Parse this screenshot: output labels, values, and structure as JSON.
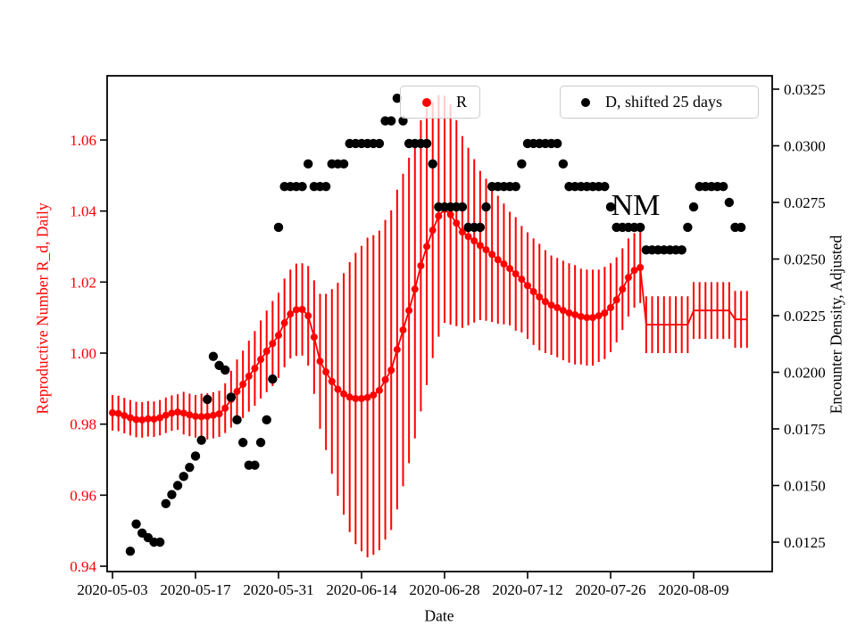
{
  "figure": {
    "annotation": "NM",
    "xlabel": "Date",
    "ylabel_left": "Reproductive Number R_d, Daily",
    "ylabel_right": "Encounter Density, Adjusted",
    "legend_r": "R",
    "legend_d": "D, shifted 25 days",
    "colors": {
      "r_series": "#ff0000",
      "d_series": "#000000",
      "legend_border": "#cccccc",
      "spine": "#000000"
    }
  },
  "chart_data": {
    "type": "line",
    "title": "",
    "xlabel": "Date",
    "grid": false,
    "legend_position": "upper center",
    "annotations": [
      {
        "text": "NM",
        "date": "2020-07-30",
        "y_left": 1.041
      }
    ],
    "x_ticks": [
      "2020-05-03",
      "2020-05-17",
      "2020-05-31",
      "2020-06-14",
      "2020-06-28",
      "2020-07-12",
      "2020-07-26",
      "2020-08-09"
    ],
    "axes": {
      "left": {
        "label": "Reproductive Number R_d, Daily",
        "color": "#ff0000",
        "ticks": [
          "0.94",
          "0.96",
          "0.98",
          "1.00",
          "1.02",
          "1.04",
          "1.06"
        ],
        "ylim": [
          0.9385,
          1.0781
        ]
      },
      "right": {
        "label": "Encounter Density, Adjusted",
        "color": "#000000",
        "ticks": [
          "0.0125",
          "0.0150",
          "0.0175",
          "0.0200",
          "0.0225",
          "0.0250",
          "0.0275",
          "0.0300",
          "0.0325"
        ],
        "ylim": [
          0.0112,
          0.0331
        ]
      }
    },
    "series": [
      {
        "name": "R",
        "axis": "left",
        "style": "errorbar-line",
        "color": "#ff0000",
        "points_format": [
          "date",
          "value",
          "err",
          "marker(0=line only)"
        ],
        "points": [
          [
            "2020-05-03",
            0.9832,
            0.005
          ],
          [
            "2020-05-04",
            0.983,
            0.005
          ],
          [
            "2020-05-05",
            0.9824,
            0.005
          ],
          [
            "2020-05-06",
            0.9818,
            0.005
          ],
          [
            "2020-05-07",
            0.9813,
            0.005
          ],
          [
            "2020-05-08",
            0.9812,
            0.005
          ],
          [
            "2020-05-09",
            0.9815,
            0.005
          ],
          [
            "2020-05-10",
            0.9814,
            0.005
          ],
          [
            "2020-05-11",
            0.9818,
            0.005
          ],
          [
            "2020-05-12",
            0.9825,
            0.005
          ],
          [
            "2020-05-13",
            0.9831,
            0.005
          ],
          [
            "2020-05-14",
            0.9834,
            0.005
          ],
          [
            "2020-05-15",
            0.9831,
            0.006
          ],
          [
            "2020-05-16",
            0.9826,
            0.006
          ],
          [
            "2020-05-17",
            0.9822,
            0.006
          ],
          [
            "2020-05-18",
            0.9821,
            0.0065
          ],
          [
            "2020-05-19",
            0.9822,
            0.0065
          ],
          [
            "2020-05-20",
            0.9825,
            0.0065
          ],
          [
            "2020-05-21",
            0.9829,
            0.0065
          ],
          [
            "2020-05-22",
            0.9845,
            0.007
          ],
          [
            "2020-05-23",
            0.987,
            0.008
          ],
          [
            "2020-05-24",
            0.9892,
            0.009
          ],
          [
            "2020-05-25",
            0.9912,
            0.0095
          ],
          [
            "2020-05-26",
            0.9935,
            0.01
          ],
          [
            "2020-05-27",
            0.9957,
            0.0105
          ],
          [
            "2020-05-28",
            0.9982,
            0.011
          ],
          [
            "2020-05-29",
            1.0005,
            0.0115
          ],
          [
            "2020-05-30",
            1.0027,
            0.012
          ],
          [
            "2020-05-31",
            1.005,
            0.012
          ],
          [
            "2020-06-01",
            1.0085,
            0.0125
          ],
          [
            "2020-06-02",
            1.011,
            0.0125
          ],
          [
            "2020-06-03",
            1.0122,
            0.013
          ],
          [
            "2020-06-04",
            1.0123,
            0.013
          ],
          [
            "2020-06-05",
            1.0105,
            0.014
          ],
          [
            "2020-06-06",
            1.0045,
            0.016
          ],
          [
            "2020-06-07",
            0.9977,
            0.019
          ],
          [
            "2020-06-08",
            0.9947,
            0.022
          ],
          [
            "2020-06-09",
            0.992,
            0.026
          ],
          [
            "2020-06-10",
            0.9898,
            0.03
          ],
          [
            "2020-06-11",
            0.9885,
            0.034
          ],
          [
            "2020-06-12",
            0.9876,
            0.038
          ],
          [
            "2020-06-13",
            0.9872,
            0.041
          ],
          [
            "2020-06-14",
            0.9872,
            0.043
          ],
          [
            "2020-06-15",
            0.9875,
            0.045
          ],
          [
            "2020-06-16",
            0.9882,
            0.045
          ],
          [
            "2020-06-17",
            0.9895,
            0.045
          ],
          [
            "2020-06-18",
            0.9925,
            0.045
          ],
          [
            "2020-06-19",
            0.9952,
            0.045
          ],
          [
            "2020-06-20",
            1.001,
            0.045
          ],
          [
            "2020-06-21",
            1.0065,
            0.044
          ],
          [
            "2020-06-22",
            1.012,
            0.043
          ],
          [
            "2020-06-23",
            1.018,
            0.042
          ],
          [
            "2020-06-24",
            1.0246,
            0.041
          ],
          [
            "2020-06-25",
            1.03,
            0.039
          ],
          [
            "2020-06-26",
            1.0346,
            0.036
          ],
          [
            "2020-06-27",
            1.0386,
            0.034
          ],
          [
            "2020-06-28",
            1.0405,
            0.032
          ],
          [
            "2020-06-29",
            1.039,
            0.031
          ],
          [
            "2020-06-30",
            1.0366,
            0.029
          ],
          [
            "2020-07-01",
            1.0341,
            0.027
          ],
          [
            "2020-07-02",
            1.0328,
            0.025
          ],
          [
            "2020-07-03",
            1.0316,
            0.023
          ],
          [
            "2020-07-04",
            1.0303,
            0.021
          ],
          [
            "2020-07-05",
            1.0291,
            0.02
          ],
          [
            "2020-07-06",
            1.0278,
            0.019
          ],
          [
            "2020-07-07",
            1.0263,
            0.018
          ],
          [
            "2020-07-08",
            1.0251,
            0.017
          ],
          [
            "2020-07-09",
            1.0238,
            0.016
          ],
          [
            "2020-07-10",
            1.0223,
            0.016
          ],
          [
            "2020-07-11",
            1.0208,
            0.015
          ],
          [
            "2020-07-12",
            1.019,
            0.015
          ],
          [
            "2020-07-13",
            1.0173,
            0.015
          ],
          [
            "2020-07-14",
            1.0158,
            0.015
          ],
          [
            "2020-07-15",
            1.0145,
            0.0145
          ],
          [
            "2020-07-16",
            1.0135,
            0.014
          ],
          [
            "2020-07-17",
            1.0128,
            0.014
          ],
          [
            "2020-07-18",
            1.012,
            0.014
          ],
          [
            "2020-07-19",
            1.0113,
            0.014
          ],
          [
            "2020-07-20",
            1.0108,
            0.014
          ],
          [
            "2020-07-21",
            1.0103,
            0.0135
          ],
          [
            "2020-07-22",
            1.01,
            0.0135
          ],
          [
            "2020-07-23",
            1.01,
            0.0135
          ],
          [
            "2020-07-24",
            1.0105,
            0.013
          ],
          [
            "2020-07-25",
            1.0113,
            0.013
          ],
          [
            "2020-07-26",
            1.0128,
            0.0125
          ],
          [
            "2020-07-27",
            1.015,
            0.012
          ],
          [
            "2020-07-28",
            1.018,
            0.0115
          ],
          [
            "2020-07-29",
            1.0213,
            0.011
          ],
          [
            "2020-07-30",
            1.0233,
            0.0105
          ],
          [
            "2020-07-31",
            1.0241,
            0.01
          ],
          [
            "2020-08-01",
            1.008,
            0.008,
            0
          ],
          [
            "2020-08-02",
            1.008,
            0.008,
            0
          ],
          [
            "2020-08-03",
            1.008,
            0.008,
            0
          ],
          [
            "2020-08-04",
            1.008,
            0.008,
            0
          ],
          [
            "2020-08-05",
            1.008,
            0.008,
            0
          ],
          [
            "2020-08-06",
            1.008,
            0.008,
            0
          ],
          [
            "2020-08-07",
            1.008,
            0.008,
            0
          ],
          [
            "2020-08-08",
            1.008,
            0.008,
            0
          ],
          [
            "2020-08-09",
            1.012,
            0.008,
            0
          ],
          [
            "2020-08-10",
            1.012,
            0.008,
            0
          ],
          [
            "2020-08-11",
            1.012,
            0.008,
            0
          ],
          [
            "2020-08-12",
            1.012,
            0.008,
            0
          ],
          [
            "2020-08-13",
            1.012,
            0.008,
            0
          ],
          [
            "2020-08-14",
            1.012,
            0.008,
            0
          ],
          [
            "2020-08-15",
            1.012,
            0.008,
            0
          ],
          [
            "2020-08-16",
            1.0095,
            0.008,
            0
          ],
          [
            "2020-08-17",
            1.0095,
            0.008,
            0
          ],
          [
            "2020-08-18",
            1.0095,
            0.008,
            0
          ]
        ]
      },
      {
        "name": "D, shifted 25 days",
        "axis": "right",
        "style": "scatter",
        "color": "#000000",
        "points_format": [
          "date",
          "value"
        ],
        "points": [
          [
            "2020-05-06",
            0.0121
          ],
          [
            "2020-05-07",
            0.0133
          ],
          [
            "2020-05-08",
            0.0129
          ],
          [
            "2020-05-09",
            0.0127
          ],
          [
            "2020-05-10",
            0.0125
          ],
          [
            "2020-05-11",
            0.0125
          ],
          [
            "2020-05-12",
            0.0142
          ],
          [
            "2020-05-13",
            0.0146
          ],
          [
            "2020-05-14",
            0.015
          ],
          [
            "2020-05-15",
            0.0154
          ],
          [
            "2020-05-16",
            0.0158
          ],
          [
            "2020-05-17",
            0.0163
          ],
          [
            "2020-05-18",
            0.017
          ],
          [
            "2020-05-19",
            0.0188
          ],
          [
            "2020-05-20",
            0.0207
          ],
          [
            "2020-05-21",
            0.0203
          ],
          [
            "2020-05-22",
            0.0201
          ],
          [
            "2020-05-23",
            0.0189
          ],
          [
            "2020-05-24",
            0.0179
          ],
          [
            "2020-05-25",
            0.0169
          ],
          [
            "2020-05-26",
            0.0159
          ],
          [
            "2020-05-27",
            0.0159
          ],
          [
            "2020-05-28",
            0.0169
          ],
          [
            "2020-05-29",
            0.0179
          ],
          [
            "2020-05-30",
            0.0197
          ],
          [
            "2020-05-31",
            0.0264
          ],
          [
            "2020-06-01",
            0.0282
          ],
          [
            "2020-06-02",
            0.0282
          ],
          [
            "2020-06-03",
            0.0282
          ],
          [
            "2020-06-04",
            0.0282
          ],
          [
            "2020-06-05",
            0.0292
          ],
          [
            "2020-06-06",
            0.0282
          ],
          [
            "2020-06-07",
            0.0282
          ],
          [
            "2020-06-08",
            0.0282
          ],
          [
            "2020-06-09",
            0.0292
          ],
          [
            "2020-06-10",
            0.0292
          ],
          [
            "2020-06-11",
            0.0292
          ],
          [
            "2020-06-12",
            0.0301
          ],
          [
            "2020-06-13",
            0.0301
          ],
          [
            "2020-06-14",
            0.0301
          ],
          [
            "2020-06-15",
            0.0301
          ],
          [
            "2020-06-16",
            0.0301
          ],
          [
            "2020-06-17",
            0.0301
          ],
          [
            "2020-06-18",
            0.0311
          ],
          [
            "2020-06-19",
            0.0311
          ],
          [
            "2020-06-20",
            0.0321
          ],
          [
            "2020-06-21",
            0.0311
          ],
          [
            "2020-06-22",
            0.0301
          ],
          [
            "2020-06-23",
            0.0301
          ],
          [
            "2020-06-24",
            0.0301
          ],
          [
            "2020-06-25",
            0.0301
          ],
          [
            "2020-06-26",
            0.0292
          ],
          [
            "2020-06-27",
            0.0273
          ],
          [
            "2020-06-28",
            0.0273
          ],
          [
            "2020-06-29",
            0.0273
          ],
          [
            "2020-06-30",
            0.0273
          ],
          [
            "2020-07-01",
            0.0273
          ],
          [
            "2020-07-02",
            0.0264
          ],
          [
            "2020-07-03",
            0.0264
          ],
          [
            "2020-07-04",
            0.0264
          ],
          [
            "2020-07-05",
            0.0273
          ],
          [
            "2020-07-06",
            0.0282
          ],
          [
            "2020-07-07",
            0.0282
          ],
          [
            "2020-07-08",
            0.0282
          ],
          [
            "2020-07-09",
            0.0282
          ],
          [
            "2020-07-10",
            0.0282
          ],
          [
            "2020-07-11",
            0.0292
          ],
          [
            "2020-07-12",
            0.0301
          ],
          [
            "2020-07-13",
            0.0301
          ],
          [
            "2020-07-14",
            0.0301
          ],
          [
            "2020-07-15",
            0.0301
          ],
          [
            "2020-07-16",
            0.0301
          ],
          [
            "2020-07-17",
            0.0301
          ],
          [
            "2020-07-18",
            0.0292
          ],
          [
            "2020-07-19",
            0.0282
          ],
          [
            "2020-07-20",
            0.0282
          ],
          [
            "2020-07-21",
            0.0282
          ],
          [
            "2020-07-22",
            0.0282
          ],
          [
            "2020-07-23",
            0.0282
          ],
          [
            "2020-07-24",
            0.0282
          ],
          [
            "2020-07-25",
            0.0282
          ],
          [
            "2020-07-26",
            0.0273
          ],
          [
            "2020-07-27",
            0.0264
          ],
          [
            "2020-07-28",
            0.0264
          ],
          [
            "2020-07-29",
            0.0264
          ],
          [
            "2020-07-30",
            0.0264
          ],
          [
            "2020-07-31",
            0.0264
          ],
          [
            "2020-08-01",
            0.0254
          ],
          [
            "2020-08-02",
            0.0254
          ],
          [
            "2020-08-03",
            0.0254
          ],
          [
            "2020-08-04",
            0.0254
          ],
          [
            "2020-08-05",
            0.0254
          ],
          [
            "2020-08-06",
            0.0254
          ],
          [
            "2020-08-07",
            0.0254
          ],
          [
            "2020-08-08",
            0.0264
          ],
          [
            "2020-08-09",
            0.0273
          ],
          [
            "2020-08-10",
            0.0282
          ],
          [
            "2020-08-11",
            0.0282
          ],
          [
            "2020-08-12",
            0.0282
          ],
          [
            "2020-08-13",
            0.0282
          ],
          [
            "2020-08-14",
            0.0282
          ],
          [
            "2020-08-15",
            0.0275
          ],
          [
            "2020-08-16",
            0.0264
          ],
          [
            "2020-08-17",
            0.0264
          ]
        ]
      }
    ]
  }
}
